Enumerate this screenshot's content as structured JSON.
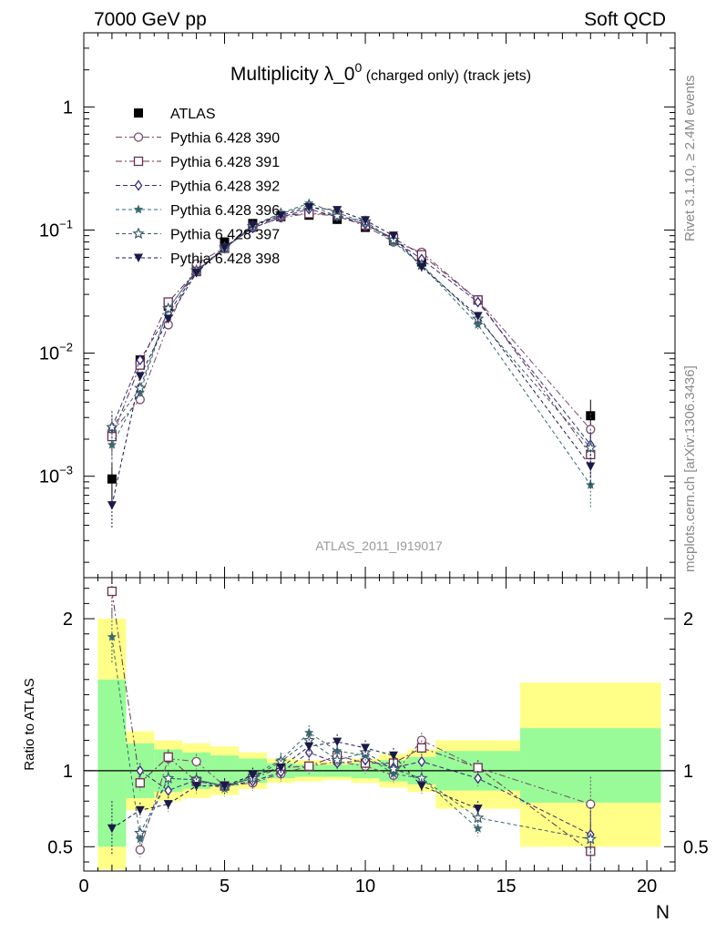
{
  "header": {
    "left": "7000 GeV pp",
    "right": "Soft QCD",
    "title_main": "Multiplicity λ_0",
    "title_sup": "0",
    "title_sub": " (charged only) (track jets)",
    "side_right_top": "Rivet 3.1.10, ≥ 2.4M events",
    "side_right_bottom": "mcplots.cern.ch [arXiv:1306.3436]",
    "analysis_id": "ATLAS_2011_I919017"
  },
  "colors": {
    "data": "#000000",
    "s390": "#7a4a6a",
    "s391": "#6a3050",
    "s392": "#3a2a7a",
    "s396": "#3a6a70",
    "s397": "#3a5a6a",
    "s398": "#1a1a4a",
    "band_inner": "#98fb98",
    "band_outer": "#ffff88"
  },
  "chart_data": [
    {
      "type": "scatter",
      "panel": "main",
      "log_y": true,
      "xlim": [
        0,
        21
      ],
      "ylim": [
        0.00015,
        4
      ],
      "ytick_labels": [
        "10^-3",
        "10^-2",
        "10^-1",
        "1"
      ],
      "x": [
        1,
        2,
        3,
        4,
        5,
        6,
        7,
        8,
        9,
        10,
        11,
        12,
        14,
        18
      ],
      "series": [
        {
          "name": "ATLAS",
          "key": "data",
          "marker": "filled-square",
          "values": [
            0.00095,
            0.0088,
            0.024,
            0.05,
            0.08,
            0.113,
            0.128,
            0.132,
            0.122,
            0.105,
            0.082,
            0.055,
            0.027,
            0.0031
          ]
        },
        {
          "name": "Pythia 6.428 390",
          "key": "s390",
          "marker": "open-circle",
          "values": [
            0.0023,
            0.0042,
            0.017,
            0.053,
            0.072,
            0.104,
            0.126,
            0.136,
            0.13,
            0.108,
            0.08,
            0.066,
            0.027,
            0.0024
          ]
        },
        {
          "name": "Pythia 6.428 391",
          "key": "s391",
          "marker": "open-square",
          "values": [
            0.0021,
            0.008,
            0.026,
            0.046,
            0.071,
            0.106,
            0.131,
            0.136,
            0.134,
            0.11,
            0.086,
            0.063,
            0.027,
            0.0015
          ]
        },
        {
          "name": "Pythia 6.428 392",
          "key": "s392",
          "marker": "open-diamond",
          "values": [
            0.0025,
            0.0088,
            0.021,
            0.046,
            0.072,
            0.104,
            0.127,
            0.148,
            0.128,
            0.112,
            0.083,
            0.058,
            0.026,
            0.0018
          ]
        },
        {
          "name": "Pythia 6.428 396",
          "key": "s396",
          "marker": "filled-star",
          "values": [
            0.0018,
            0.0048,
            0.023,
            0.047,
            0.07,
            0.109,
            0.137,
            0.165,
            0.138,
            0.115,
            0.08,
            0.052,
            0.017,
            0.00085
          ]
        },
        {
          "name": "Pythia 6.428 397",
          "key": "s397",
          "marker": "open-star",
          "values": [
            0.0025,
            0.0052,
            0.023,
            0.047,
            0.072,
            0.107,
            0.136,
            0.158,
            0.13,
            0.117,
            0.083,
            0.052,
            0.019,
            0.0017
          ]
        },
        {
          "name": "Pythia 6.428 398",
          "key": "s398",
          "marker": "filled-triangle-down",
          "values": [
            0.00058,
            0.0065,
            0.019,
            0.045,
            0.072,
            0.109,
            0.131,
            0.153,
            0.145,
            0.12,
            0.09,
            0.05,
            0.02,
            0.0012
          ]
        }
      ]
    },
    {
      "type": "scatter",
      "panel": "ratio",
      "ylabel": "Ratio to ATLAS",
      "xlabel": "N",
      "xlim": [
        0,
        21
      ],
      "ylim": [
        0.34,
        2.27
      ],
      "xticks": [
        0,
        5,
        10,
        15,
        20
      ],
      "yticks": [
        0.5,
        1,
        2
      ],
      "bands": [
        {
          "x0": 0.5,
          "x1": 1.5,
          "inner": [
            0.5,
            1.6
          ],
          "outer": [
            0.35,
            2.0
          ]
        },
        {
          "x0": 1.5,
          "x1": 2.5,
          "inner": [
            0.82,
            1.18
          ],
          "outer": [
            0.74,
            1.26
          ]
        },
        {
          "x0": 2.5,
          "x1": 3.5,
          "inner": [
            0.86,
            1.14
          ],
          "outer": [
            0.8,
            1.2
          ]
        },
        {
          "x0": 3.5,
          "x1": 4.5,
          "inner": [
            0.88,
            1.12
          ],
          "outer": [
            0.82,
            1.18
          ]
        },
        {
          "x0": 4.5,
          "x1": 5.5,
          "inner": [
            0.9,
            1.1
          ],
          "outer": [
            0.84,
            1.16
          ]
        },
        {
          "x0": 5.5,
          "x1": 6.5,
          "inner": [
            0.92,
            1.08
          ],
          "outer": [
            0.88,
            1.12
          ]
        },
        {
          "x0": 6.5,
          "x1": 7.5,
          "inner": [
            0.95,
            1.05
          ],
          "outer": [
            0.92,
            1.08
          ]
        },
        {
          "x0": 7.5,
          "x1": 8.5,
          "inner": [
            0.96,
            1.04
          ],
          "outer": [
            0.93,
            1.07
          ]
        },
        {
          "x0": 8.5,
          "x1": 9.5,
          "inner": [
            0.96,
            1.04
          ],
          "outer": [
            0.94,
            1.06
          ]
        },
        {
          "x0": 9.5,
          "x1": 10.5,
          "inner": [
            0.95,
            1.05
          ],
          "outer": [
            0.92,
            1.08
          ]
        },
        {
          "x0": 10.5,
          "x1": 11.5,
          "inner": [
            0.93,
            1.07
          ],
          "outer": [
            0.89,
            1.11
          ]
        },
        {
          "x0": 11.5,
          "x1": 12.5,
          "inner": [
            0.91,
            1.09
          ],
          "outer": [
            0.86,
            1.14
          ]
        },
        {
          "x0": 12.5,
          "x1": 15.5,
          "inner": [
            0.87,
            1.13
          ],
          "outer": [
            0.75,
            1.2
          ]
        },
        {
          "x0": 15.5,
          "x1": 20.5,
          "inner": [
            0.79,
            1.28
          ],
          "outer": [
            0.5,
            1.58
          ]
        }
      ],
      "series": [
        {
          "key": "s390",
          "values": [
            null,
            0.48,
            1.08,
            1.06,
            0.9,
            0.92,
            0.98,
            1.03,
            1.06,
            1.03,
            0.97,
            1.2,
            1.02,
            0.78
          ]
        },
        {
          "key": "s391",
          "values": [
            2.18,
            0.92,
            1.09,
            0.93,
            0.9,
            0.95,
            1.02,
            1.03,
            1.1,
            1.05,
            1.05,
            1.15,
            1.02,
            0.47
          ]
        },
        {
          "key": "s392",
          "values": [
            null,
            1.0,
            0.87,
            0.94,
            0.9,
            0.93,
            0.99,
            1.12,
            1.05,
            1.07,
            1.02,
            1.06,
            0.95,
            0.58
          ]
        },
        {
          "key": "s396",
          "values": [
            1.88,
            0.55,
            0.95,
            0.94,
            0.88,
            0.97,
            1.07,
            1.25,
            1.13,
            1.1,
            0.98,
            0.95,
            0.62,
            null
          ]
        },
        {
          "key": "s397",
          "values": [
            null,
            0.59,
            0.95,
            0.94,
            0.9,
            0.95,
            1.06,
            1.2,
            1.07,
            1.12,
            1.01,
            0.95,
            0.69,
            0.55
          ]
        },
        {
          "key": "s398",
          "values": [
            0.62,
            0.74,
            0.78,
            0.9,
            0.9,
            0.97,
            1.02,
            1.16,
            1.19,
            1.15,
            1.1,
            0.9,
            0.75,
            null
          ]
        }
      ]
    }
  ]
}
